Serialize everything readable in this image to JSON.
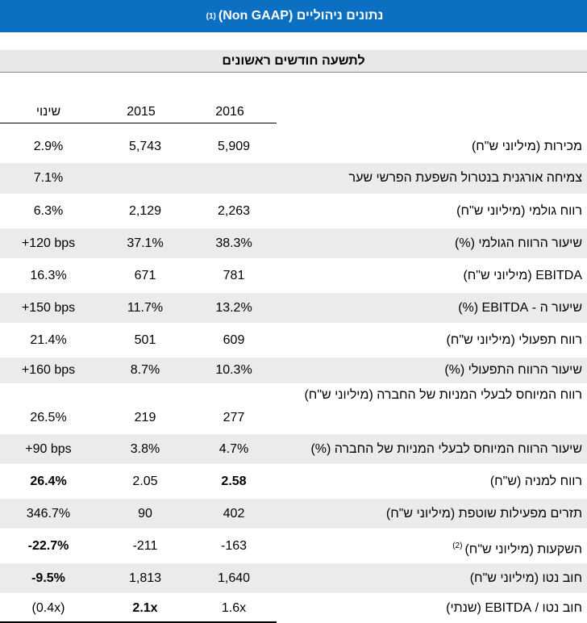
{
  "header": {
    "title": "נתונים ניהוליים (Non GAAP)",
    "note": "(1)"
  },
  "subheader": "לתשעה חודשים ראשונים",
  "columns": [
    "שינוי",
    "2015",
    "2016"
  ],
  "rows": [
    {
      "label": "מכירות (מיליוני ש\"ח)",
      "values": [
        "2.9%",
        "5,743",
        "5,909"
      ]
    },
    {
      "label": "צמיחה אורגנית בנטרול השפעת הפרשי שער",
      "values": [
        "7.1%",
        null,
        null
      ]
    },
    {
      "label": "רווח גולמי (מיליוני ש\"ח)",
      "values": [
        "6.3%",
        "2,129",
        "2,263"
      ]
    },
    {
      "label": "שיעור הרווח הגולמי (%)",
      "values": [
        "+120 bps",
        "37.1%",
        "38.3%"
      ]
    },
    {
      "label": "EBITDA (מיליוני ש\"ח)",
      "values": [
        "16.3%",
        "671",
        "781"
      ]
    },
    {
      "label": "שיעור ה - EBITDA (%)",
      "values": [
        "+150 bps",
        "11.7%",
        "13.2%"
      ]
    },
    {
      "label": "רווח תפעולי (מיליוני ש\"ח)",
      "values": [
        "21.4%",
        "501",
        "609"
      ]
    },
    {
      "label": "שיעור הרווח התפעולי (%)",
      "values": [
        "+160 bps",
        "8.7%",
        "10.3%"
      ]
    },
    {
      "label": "רווח המיוחס לבעלי המניות של החברה (מיליוני ש\"ח)",
      "values": [
        "26.5%",
        "219",
        "277"
      ]
    },
    {
      "label": "שיעור הרווח המיוחס לבעלי המניות של החברה (%)",
      "values": [
        "+90 bps",
        "3.8%",
        "4.7%"
      ]
    },
    {
      "label": "רווח למניה (ש\"ח)",
      "values": [
        "26.4%",
        "2.05",
        "2.58"
      ],
      "bold": [
        0,
        2
      ]
    },
    {
      "label": "תזרים מפעילות שוטפת (מיליוני ש\"ח)",
      "values": [
        "346.7%",
        "90",
        "402"
      ]
    },
    {
      "label": "השקעות (מיליוני ש\"ח)",
      "note": "(2)",
      "values": [
        "-22.7%",
        "-211",
        "-163"
      ],
      "bold": [
        0
      ]
    },
    {
      "label": "חוב נטו (מיליוני ש\"ח)",
      "values": [
        "-9.5%",
        "1,813",
        "1,640"
      ],
      "bold": [
        0
      ]
    },
    {
      "label": "חוב נטו / EBITDA (שנתי)",
      "values": [
        "(0.4x)",
        "2.1x",
        "1.6x"
      ],
      "bold": [
        1
      ]
    }
  ]
}
